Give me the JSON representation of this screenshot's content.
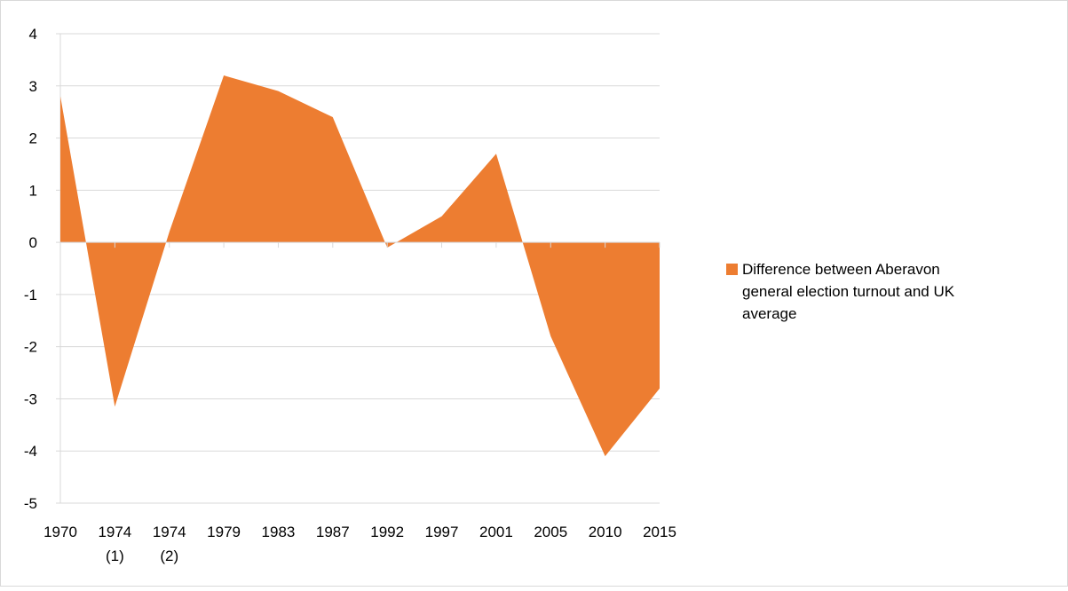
{
  "chart_data": {
    "type": "area",
    "categories": [
      "1970",
      "1974 (1)",
      "1974 (2)",
      "1979",
      "1983",
      "1987",
      "1992",
      "1997",
      "2001",
      "2005",
      "2010",
      "2015"
    ],
    "series": [
      {
        "name": "Difference between Aberavon general election turnout and UK average",
        "color": "#ed7d31",
        "values": [
          2.8,
          -3.15,
          0.2,
          3.2,
          2.9,
          2.4,
          -0.1,
          0.5,
          1.7,
          -1.8,
          -4.1,
          -2.8
        ]
      }
    ],
    "ylim": [
      -5,
      4
    ],
    "yticks": [
      -5,
      -4,
      -3,
      -2,
      -1,
      0,
      1,
      2,
      3,
      4
    ],
    "grid": true,
    "legend": "right"
  }
}
